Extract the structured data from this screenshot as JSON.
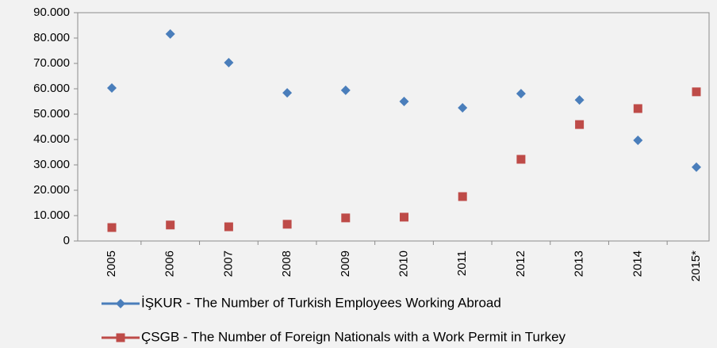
{
  "chart_data": {
    "type": "line",
    "categories": [
      "2005",
      "2006",
      "2007",
      "2008",
      "2009",
      "2010",
      "2011",
      "2012",
      "2013",
      "2014",
      "2015*"
    ],
    "series": [
      {
        "name": "İŞKUR - The Number of Turkish Employees Working Abroad",
        "color": "#4a7ebb",
        "marker": "diamond",
        "values": [
          60300,
          81600,
          70300,
          58400,
          59400,
          55000,
          52500,
          58100,
          55600,
          39700,
          29100
        ]
      },
      {
        "name": "ÇSGB - The Number of Foreign Nationals with a Work Permit in Turkey",
        "color": "#be4b48",
        "marker": "square",
        "values": [
          5300,
          6300,
          5600,
          6600,
          9100,
          9400,
          17500,
          32200,
          45900,
          52200,
          58800
        ]
      }
    ],
    "ylim": [
      0,
      90000
    ],
    "yticks": [
      0,
      {
        "value": 10000,
        "label": "10.000"
      },
      {
        "value": 20000,
        "label": "20.000"
      },
      {
        "value": 30000,
        "label": "30.000"
      },
      {
        "value": 40000,
        "label": "40.000"
      },
      {
        "value": 50000,
        "label": "50.000"
      },
      {
        "value": 60000,
        "label": "60.000"
      },
      {
        "value": 70000,
        "label": "70.000"
      },
      {
        "value": 80000,
        "label": "80.000"
      },
      {
        "value": 90000,
        "label": "90.000"
      }
    ],
    "grid": false
  }
}
